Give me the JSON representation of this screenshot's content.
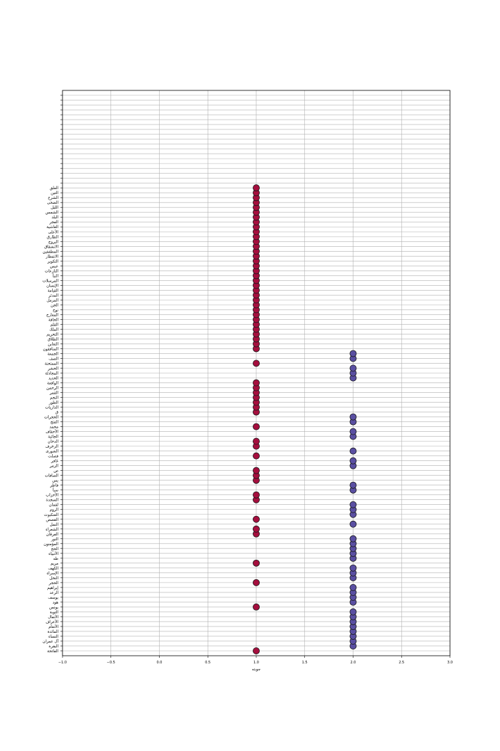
{
  "chart_data": {
    "type": "scatter",
    "title": "",
    "xlabel": "جوبته",
    "ylabel": "",
    "xlim": [
      -1.0,
      3.0
    ],
    "xticks": [
      "−1.0",
      "−0.5",
      "0.0",
      "0.5",
      "1.0",
      "1.5",
      "2.0",
      "2.5",
      "3.0"
    ],
    "xtick_values": [
      -1.0,
      -0.5,
      0.0,
      0.5,
      1.0,
      1.5,
      2.0,
      2.5,
      3.0
    ],
    "grid": true,
    "empty_top_rows": 18,
    "colors": {
      "mecca": "#a50f3e",
      "medina": "#5a4fa2",
      "grid": "#b0b0b0",
      "edge": "#1a1a1a"
    },
    "categories": [
      "الفاتحة",
      "البقرة",
      "آل عمران",
      "النساء",
      "المائدة",
      "الأنعام",
      "الأعراف",
      "الأنفال",
      "التوبة",
      "يونس",
      "هود",
      "يوسف",
      "الرعد",
      "إبراهيم",
      "الحجر",
      "النحل",
      "الإسراء",
      "الكهف",
      "مريم",
      "طه",
      "الأنبياء",
      "الحج",
      "المؤمنون",
      "النور",
      "الفرقان",
      "الشعراء",
      "النمل",
      "القصص",
      "العنكبوت",
      "الروم",
      "لقمان",
      "السجدة",
      "الأحزاب",
      "سبأ",
      "فاطر",
      "يس",
      "الصافات",
      "ص",
      "الزمر",
      "غافر",
      "فصلت",
      "الشورى",
      "الزخرف",
      "الدخان",
      "الجاثية",
      "الأحقاف",
      "محمد",
      "الفتح",
      "الحجرات",
      "ق",
      "الذاريات",
      "الطور",
      "النجم",
      "القمر",
      "الرحمن",
      "الواقعة",
      "الحديد",
      "المجادلة",
      "الحشر",
      "الممتحنة",
      "الصف",
      "الجمعة",
      "المنافقون",
      "التغابن",
      "الطلاق",
      "التحريم",
      "الملك",
      "القلم",
      "الحاقة",
      "المعارج",
      "نوح",
      "الجن",
      "المزمل",
      "المدثر",
      "القيامة",
      "الإنسان",
      "المرسلات",
      "النبأ",
      "النازعات",
      "عبس",
      "التكوير",
      "الانفطار",
      "المطففين",
      "الانشقاق",
      "البروج",
      "الطارق",
      "الأعلى",
      "الغاشية",
      "الفجر",
      "البلد",
      "الشمس",
      "الليل",
      "الضحى",
      "الشرح",
      "التين",
      "العلق"
    ],
    "values": [
      1,
      2,
      2,
      2,
      2,
      2,
      2,
      2,
      2,
      1,
      2,
      2,
      2,
      2,
      1,
      2,
      2,
      2,
      1,
      2,
      2,
      2,
      2,
      2,
      1,
      1,
      2,
      1,
      2,
      2,
      2,
      1,
      1,
      2,
      2,
      1,
      1,
      1,
      2,
      2,
      1,
      2,
      1,
      1,
      2,
      2,
      1,
      2,
      2,
      1,
      1,
      1,
      1,
      1,
      1,
      1,
      2,
      2,
      2,
      1,
      2,
      2,
      1,
      1,
      1,
      1,
      1,
      1,
      1,
      1,
      1,
      1,
      1,
      1,
      1,
      1,
      1,
      1,
      1,
      1,
      1,
      1,
      1,
      1,
      1,
      1,
      1,
      1,
      1,
      1,
      1,
      1,
      1,
      1,
      1,
      1
    ]
  }
}
